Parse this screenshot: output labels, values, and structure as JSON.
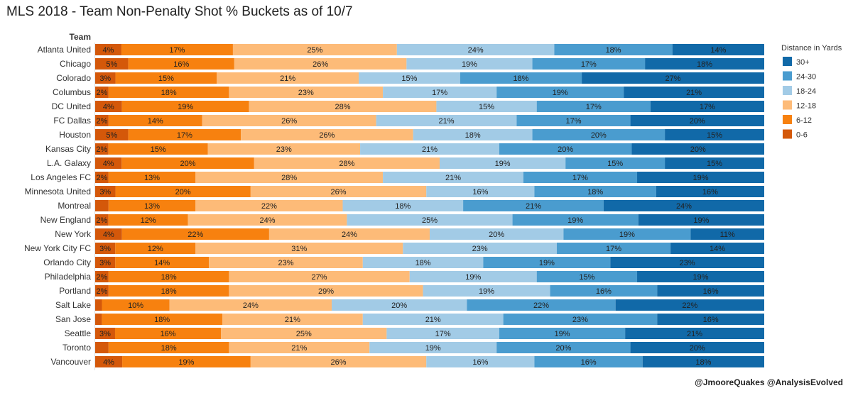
{
  "title": "MLS 2018 - Team Non-Penalty Shot % Buckets as of 10/7",
  "credit": "@JmooreQuakes @AnalysisEvolved",
  "chart_data": {
    "type": "bar",
    "orientation": "horizontal-stacked-100",
    "row_header": "Team",
    "legend_title": "Distance in Yards",
    "legend_position": "right",
    "categories": [
      "Atlanta United",
      "Chicago",
      "Colorado",
      "Columbus",
      "DC United",
      "FC Dallas",
      "Houston",
      "Kansas City",
      "L.A. Galaxy",
      "Los Angeles FC",
      "Minnesota United",
      "Montreal",
      "New England",
      "New York",
      "New York City FC",
      "Orlando City",
      "Philadelphia",
      "Portland",
      "Salt Lake",
      "San Jose",
      "Seattle",
      "Toronto",
      "Vancouver"
    ],
    "series": [
      {
        "name": "0-6",
        "color": "#d4580a",
        "values": [
          4,
          5,
          3,
          2,
          4,
          2,
          5,
          2,
          4,
          2,
          3,
          2,
          2,
          4,
          3,
          3,
          2,
          2,
          1,
          1,
          3,
          2,
          4
        ]
      },
      {
        "name": "6-12",
        "color": "#f7810f",
        "values": [
          17,
          16,
          15,
          18,
          19,
          14,
          17,
          15,
          20,
          13,
          20,
          13,
          12,
          22,
          12,
          14,
          18,
          18,
          10,
          18,
          16,
          18,
          19
        ]
      },
      {
        "name": "12-18",
        "color": "#fdbb78",
        "values": [
          25,
          26,
          21,
          23,
          28,
          26,
          26,
          23,
          28,
          28,
          26,
          22,
          24,
          24,
          31,
          23,
          27,
          29,
          24,
          21,
          25,
          21,
          26
        ]
      },
      {
        "name": "18-24",
        "color": "#a2cbe6",
        "values": [
          24,
          19,
          15,
          17,
          15,
          21,
          18,
          21,
          19,
          21,
          16,
          18,
          25,
          20,
          23,
          18,
          19,
          19,
          20,
          21,
          17,
          19,
          16
        ]
      },
      {
        "name": "24-30",
        "color": "#4a9ccf",
        "values": [
          18,
          17,
          18,
          19,
          17,
          17,
          20,
          20,
          15,
          17,
          18,
          21,
          19,
          19,
          17,
          19,
          15,
          16,
          22,
          23,
          19,
          20,
          16
        ]
      },
      {
        "name": "30+",
        "color": "#1169a8",
        "values": [
          14,
          18,
          27,
          21,
          17,
          20,
          15,
          20,
          15,
          19,
          16,
          24,
          19,
          11,
          14,
          23,
          19,
          16,
          22,
          16,
          21,
          20,
          18
        ]
      }
    ],
    "labels": [
      [
        "4%",
        "17%",
        "25%",
        "24%",
        "18%",
        "14%"
      ],
      [
        "5%",
        "16%",
        "26%",
        "19%",
        "17%",
        "18%"
      ],
      [
        "3%",
        "15%",
        "21%",
        "15%",
        "18%",
        "27%"
      ],
      [
        "2%",
        "18%",
        "23%",
        "17%",
        "19%",
        "21%"
      ],
      [
        "4%",
        "19%",
        "28%",
        "15%",
        "17%",
        "17%"
      ],
      [
        "2%",
        "14%",
        "26%",
        "21%",
        "17%",
        "20%"
      ],
      [
        "5%",
        "17%",
        "26%",
        "18%",
        "20%",
        "15%"
      ],
      [
        "2%",
        "15%",
        "23%",
        "21%",
        "20%",
        "20%"
      ],
      [
        "4%",
        "20%",
        "28%",
        "19%",
        "15%",
        "15%"
      ],
      [
        "2%",
        "13%",
        "28%",
        "21%",
        "17%",
        "19%"
      ],
      [
        "3%",
        "20%",
        "26%",
        "16%",
        "18%",
        "16%"
      ],
      [
        "",
        "13%",
        "22%",
        "18%",
        "21%",
        "24%"
      ],
      [
        "2%",
        "12%",
        "24%",
        "25%",
        "19%",
        "19%"
      ],
      [
        "4%",
        "22%",
        "24%",
        "20%",
        "19%",
        "11%"
      ],
      [
        "3%",
        "12%",
        "31%",
        "23%",
        "17%",
        "14%"
      ],
      [
        "3%",
        "14%",
        "23%",
        "18%",
        "19%",
        "23%"
      ],
      [
        "2%",
        "18%",
        "27%",
        "19%",
        "15%",
        "19%"
      ],
      [
        "2%",
        "18%",
        "29%",
        "19%",
        "16%",
        "16%"
      ],
      [
        "",
        "10%",
        "24%",
        "20%",
        "22%",
        "22%"
      ],
      [
        "",
        "18%",
        "21%",
        "21%",
        "23%",
        "16%"
      ],
      [
        "3%",
        "16%",
        "25%",
        "17%",
        "19%",
        "21%"
      ],
      [
        "",
        "18%",
        "21%",
        "19%",
        "20%",
        "20%"
      ],
      [
        "4%",
        "19%",
        "26%",
        "16%",
        "16%",
        "18%"
      ]
    ],
    "legend_order": [
      "30+",
      "24-30",
      "18-24",
      "12-18",
      "6-12",
      "0-6"
    ]
  }
}
